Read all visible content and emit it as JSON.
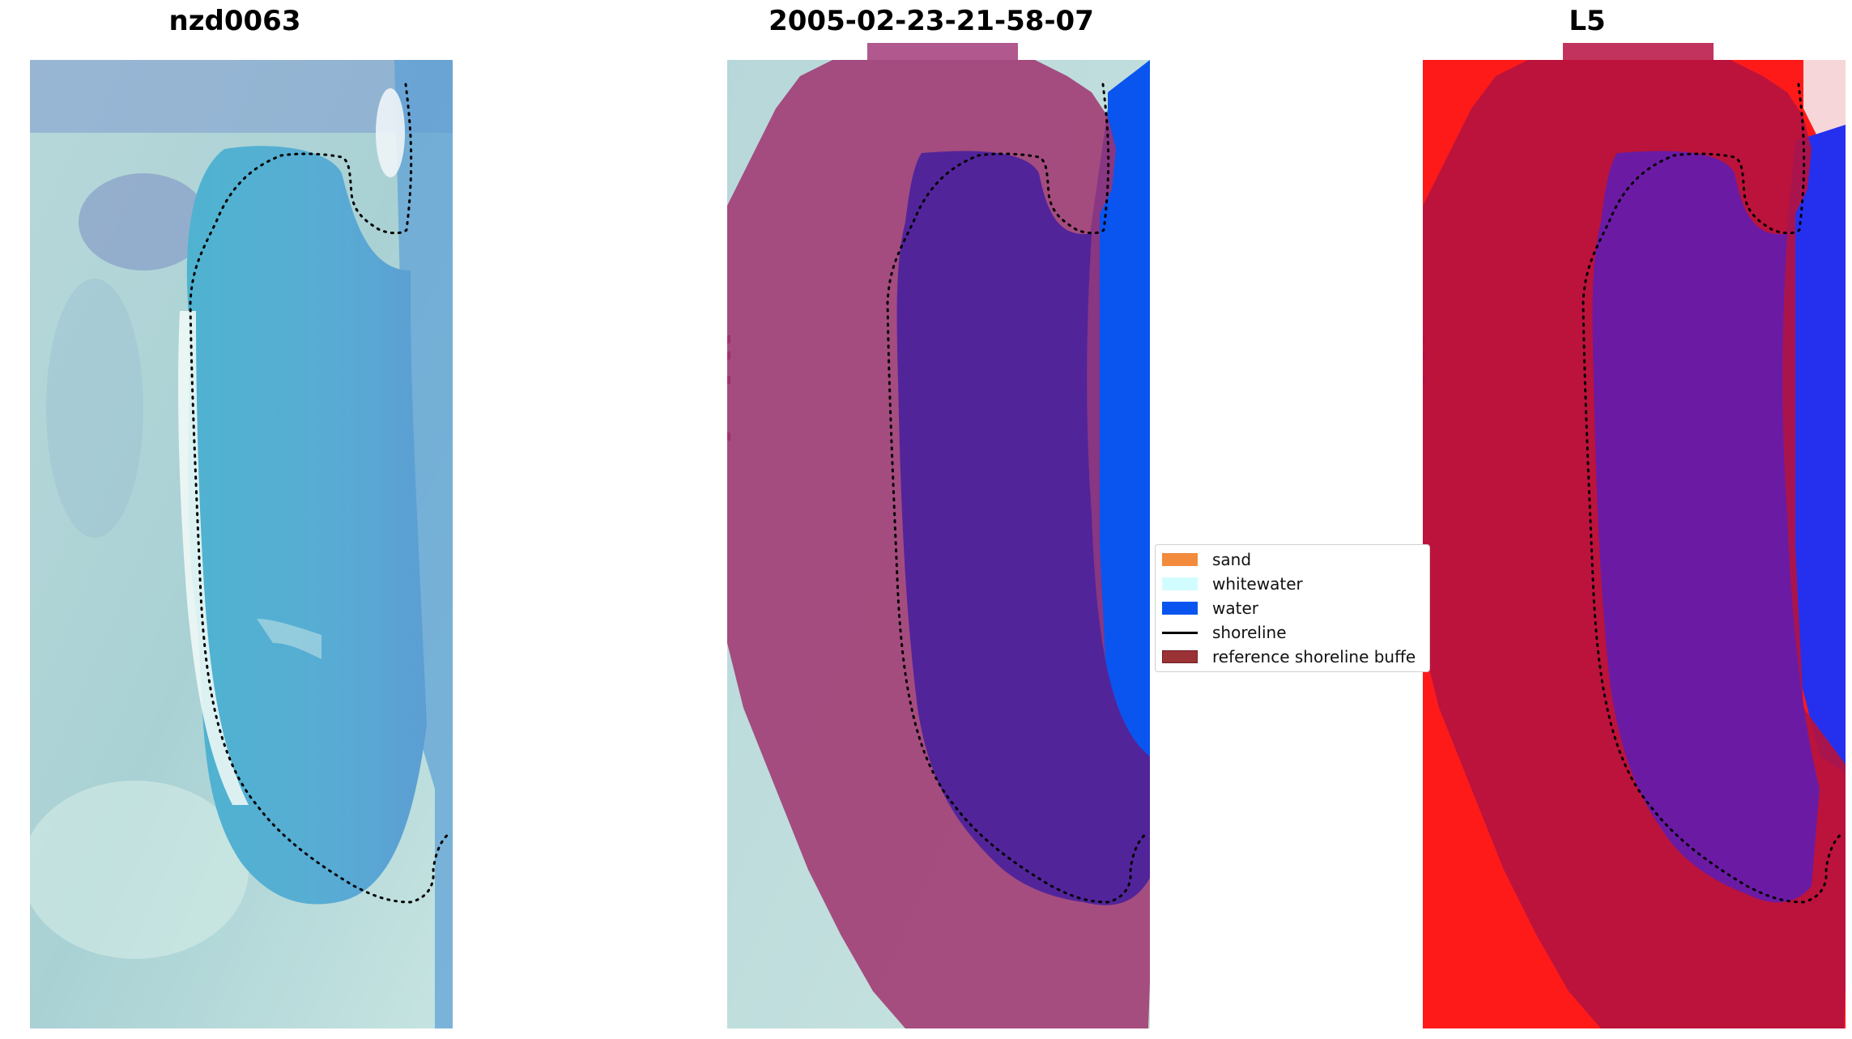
{
  "panels": [
    {
      "title": "nzd0063"
    },
    {
      "title": "2005-02-23-21-58-07"
    },
    {
      "title": "L5"
    }
  ],
  "legend": {
    "items": [
      {
        "label": "sand",
        "color": "#f28b3c",
        "kind": "swatch"
      },
      {
        "label": "whitewater",
        "color": "#d2fdff",
        "kind": "swatch"
      },
      {
        "label": "water",
        "color": "#0a55ef",
        "kind": "swatch"
      },
      {
        "label": "shoreline",
        "color": "#000000",
        "kind": "line"
      },
      {
        "label": "reference shoreline buffe",
        "color": "#9b3235",
        "kind": "swatch"
      }
    ]
  },
  "colors": {
    "water_class": "#0a55ef",
    "buffer_overlay": "#a0326e",
    "inner_water_overlay": "#52249a",
    "index_high": "#ff1a1a",
    "index_low": "#1f24ee",
    "shoreline": "#000000"
  }
}
